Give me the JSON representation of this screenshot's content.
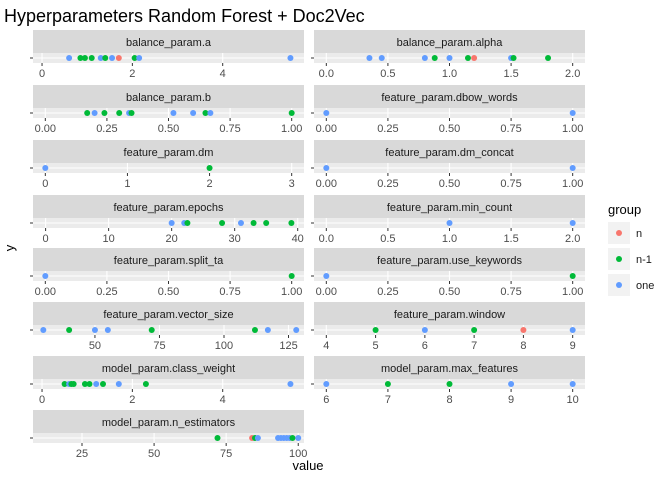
{
  "chart_data": {
    "type": "scatter",
    "title": "Hyperparameters Random Forest + Doc2Vec",
    "xlabel": "value",
    "ylabel": "y",
    "legend": {
      "title": "group",
      "position": "right",
      "entries": [
        {
          "label": "n",
          "color": "#F8766D"
        },
        {
          "label": "n-1",
          "color": "#00BA38"
        },
        {
          "label": "one",
          "color": "#619CFF"
        }
      ]
    },
    "panels": [
      {
        "strip": "balance_param.a",
        "xlim": [
          -0.2,
          5.8
        ],
        "ticks": [
          0,
          2,
          4
        ],
        "tick_labels": [
          "0",
          "2",
          "4"
        ],
        "points": [
          {
            "x": 0.6,
            "group": "one"
          },
          {
            "x": 0.85,
            "group": "n-1"
          },
          {
            "x": 0.95,
            "group": "n-1"
          },
          {
            "x": 1.1,
            "group": "n-1"
          },
          {
            "x": 1.3,
            "group": "one"
          },
          {
            "x": 1.4,
            "group": "n-1"
          },
          {
            "x": 1.55,
            "group": "one"
          },
          {
            "x": 1.7,
            "group": "n"
          },
          {
            "x": 2.05,
            "group": "n-1"
          },
          {
            "x": 2.15,
            "group": "one"
          },
          {
            "x": 5.5,
            "group": "one"
          }
        ]
      },
      {
        "strip": "balance_param.alpha",
        "xlim": [
          -0.1,
          2.1
        ],
        "ticks": [
          0.0,
          0.5,
          1.0,
          1.5,
          2.0
        ],
        "tick_labels": [
          "0.0",
          "0.5",
          "1.0",
          "1.5",
          "2.0"
        ],
        "points": [
          {
            "x": 0.35,
            "group": "one"
          },
          {
            "x": 0.45,
            "group": "one"
          },
          {
            "x": 0.8,
            "group": "one"
          },
          {
            "x": 0.88,
            "group": "n-1"
          },
          {
            "x": 1.0,
            "group": "one"
          },
          {
            "x": 1.15,
            "group": "n-1"
          },
          {
            "x": 1.2,
            "group": "n"
          },
          {
            "x": 1.5,
            "group": "one"
          },
          {
            "x": 1.52,
            "group": "n-1"
          },
          {
            "x": 1.8,
            "group": "n-1"
          }
        ]
      },
      {
        "strip": "balance_param.b",
        "xlim": [
          -0.05,
          1.05
        ],
        "ticks": [
          0.0,
          0.25,
          0.5,
          0.75,
          1.0
        ],
        "tick_labels": [
          "0.00",
          "0.25",
          "0.50",
          "0.75",
          "1.00"
        ],
        "points": [
          {
            "x": 0.17,
            "group": "n-1"
          },
          {
            "x": 0.2,
            "group": "one"
          },
          {
            "x": 0.24,
            "group": "n-1"
          },
          {
            "x": 0.3,
            "group": "n-1"
          },
          {
            "x": 0.34,
            "group": "one"
          },
          {
            "x": 0.35,
            "group": "n-1"
          },
          {
            "x": 0.52,
            "group": "one"
          },
          {
            "x": 0.6,
            "group": "one"
          },
          {
            "x": 0.65,
            "group": "n-1"
          },
          {
            "x": 0.67,
            "group": "one"
          },
          {
            "x": 1.0,
            "group": "n-1"
          }
        ]
      },
      {
        "strip": "feature_param.dbow_words",
        "xlim": [
          -0.05,
          1.05
        ],
        "ticks": [
          0.0,
          0.25,
          0.5,
          0.75,
          1.0
        ],
        "tick_labels": [
          "0.00",
          "0.25",
          "0.50",
          "0.75",
          "1.00"
        ],
        "points": [
          {
            "x": 0.0,
            "group": "one"
          },
          {
            "x": 1.0,
            "group": "one"
          }
        ]
      },
      {
        "strip": "feature_param.dm",
        "xlim": [
          -0.15,
          3.15
        ],
        "ticks": [
          0,
          1,
          2,
          3
        ],
        "tick_labels": [
          "0",
          "1",
          "2",
          "3"
        ],
        "points": [
          {
            "x": 0,
            "group": "one"
          },
          {
            "x": 2,
            "group": "n-1"
          }
        ]
      },
      {
        "strip": "feature_param.dm_concat",
        "xlim": [
          -0.05,
          1.05
        ],
        "ticks": [
          0.0,
          0.25,
          0.5,
          0.75,
          1.0
        ],
        "tick_labels": [
          "0.00",
          "0.25",
          "0.50",
          "0.75",
          "1.00"
        ],
        "points": [
          {
            "x": 0.0,
            "group": "one"
          },
          {
            "x": 1.0,
            "group": "one"
          }
        ]
      },
      {
        "strip": "feature_param.epochs",
        "xlim": [
          -2,
          41
        ],
        "ticks": [
          0,
          10,
          20,
          30,
          40
        ],
        "tick_labels": [
          "0",
          "10",
          "20",
          "30",
          "40"
        ],
        "points": [
          {
            "x": 20,
            "group": "one"
          },
          {
            "x": 22,
            "group": "one"
          },
          {
            "x": 22.5,
            "group": "n-1"
          },
          {
            "x": 28,
            "group": "n-1"
          },
          {
            "x": 31,
            "group": "one"
          },
          {
            "x": 33,
            "group": "n-1"
          },
          {
            "x": 35,
            "group": "n-1"
          },
          {
            "x": 39,
            "group": "n-1"
          }
        ]
      },
      {
        "strip": "feature_param.min_count",
        "xlim": [
          -0.1,
          2.1
        ],
        "ticks": [
          0.0,
          0.5,
          1.0,
          1.5,
          2.0
        ],
        "tick_labels": [
          "0.0",
          "0.5",
          "1.0",
          "1.5",
          "2.0"
        ],
        "points": [
          {
            "x": 1.0,
            "group": "one"
          },
          {
            "x": 2.0,
            "group": "one"
          }
        ]
      },
      {
        "strip": "feature_param.split_ta",
        "xlim": [
          -0.05,
          1.05
        ],
        "ticks": [
          0.0,
          0.25,
          0.5,
          0.75,
          1.0
        ],
        "tick_labels": [
          "0.00",
          "0.25",
          "0.50",
          "0.75",
          "1.00"
        ],
        "points": [
          {
            "x": 0.0,
            "group": "one"
          },
          {
            "x": 1.0,
            "group": "n-1"
          }
        ]
      },
      {
        "strip": "feature_param.use_keywords",
        "xlim": [
          -0.05,
          1.05
        ],
        "ticks": [
          0.0,
          0.25,
          0.5,
          0.75,
          1.0
        ],
        "tick_labels": [
          "0.00",
          "0.25",
          "0.50",
          "0.75",
          "1.00"
        ],
        "points": [
          {
            "x": 0.0,
            "group": "one"
          },
          {
            "x": 1.0,
            "group": "n-1"
          }
        ]
      },
      {
        "strip": "feature_param.vector_size",
        "xlim": [
          26,
          131
        ],
        "ticks": [
          50,
          75,
          100,
          125
        ],
        "tick_labels": [
          "50",
          "75",
          "100",
          "125"
        ],
        "points": [
          {
            "x": 30,
            "group": "one"
          },
          {
            "x": 40,
            "group": "n-1"
          },
          {
            "x": 50,
            "group": "one"
          },
          {
            "x": 55,
            "group": "one"
          },
          {
            "x": 72,
            "group": "n-1"
          },
          {
            "x": 112,
            "group": "n-1"
          },
          {
            "x": 117,
            "group": "one"
          },
          {
            "x": 128,
            "group": "one"
          }
        ]
      },
      {
        "strip": "feature_param.window",
        "xlim": [
          3.75,
          9.25
        ],
        "ticks": [
          4,
          5,
          6,
          7,
          8,
          9
        ],
        "tick_labels": [
          "4",
          "5",
          "6",
          "7",
          "8",
          "9"
        ],
        "points": [
          {
            "x": 5,
            "group": "n-1"
          },
          {
            "x": 6,
            "group": "one"
          },
          {
            "x": 7,
            "group": "n-1"
          },
          {
            "x": 8,
            "group": "n"
          },
          {
            "x": 9,
            "group": "one"
          }
        ]
      },
      {
        "strip": "model_param.class_weight",
        "xlim": [
          -0.2,
          5.8
        ],
        "ticks": [
          0,
          2,
          4
        ],
        "tick_labels": [
          "0",
          "2",
          "4"
        ],
        "points": [
          {
            "x": 0.5,
            "group": "n-1"
          },
          {
            "x": 0.6,
            "group": "one"
          },
          {
            "x": 0.65,
            "group": "n-1"
          },
          {
            "x": 0.7,
            "group": "n-1"
          },
          {
            "x": 0.95,
            "group": "n-1"
          },
          {
            "x": 1.05,
            "group": "n-1"
          },
          {
            "x": 1.2,
            "group": "one"
          },
          {
            "x": 1.35,
            "group": "n-1"
          },
          {
            "x": 1.7,
            "group": "one"
          },
          {
            "x": 2.3,
            "group": "n-1"
          },
          {
            "x": 5.5,
            "group": "one"
          }
        ]
      },
      {
        "strip": "model_param.max_features",
        "xlim": [
          5.8,
          10.2
        ],
        "ticks": [
          6,
          7,
          8,
          9,
          10
        ],
        "tick_labels": [
          "6",
          "7",
          "8",
          "9",
          "10"
        ],
        "points": [
          {
            "x": 6,
            "group": "one"
          },
          {
            "x": 7,
            "group": "n-1"
          },
          {
            "x": 8,
            "group": "n-1"
          },
          {
            "x": 9,
            "group": "one"
          },
          {
            "x": 10,
            "group": "one"
          }
        ]
      },
      {
        "strip": "model_param.n_estimators",
        "xlim": [
          8,
          102
        ],
        "ticks": [
          25,
          50,
          75,
          100
        ],
        "tick_labels": [
          "25",
          "50",
          "75",
          "100"
        ],
        "points": [
          {
            "x": 72,
            "group": "n-1"
          },
          {
            "x": 84,
            "group": "n"
          },
          {
            "x": 85,
            "group": "n-1"
          },
          {
            "x": 86,
            "group": "one"
          },
          {
            "x": 93,
            "group": "one"
          },
          {
            "x": 94,
            "group": "one"
          },
          {
            "x": 95,
            "group": "one"
          },
          {
            "x": 96,
            "group": "one"
          },
          {
            "x": 97,
            "group": "one"
          },
          {
            "x": 98,
            "group": "n-1"
          },
          {
            "x": 100,
            "group": "one"
          }
        ]
      }
    ]
  }
}
